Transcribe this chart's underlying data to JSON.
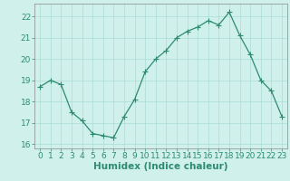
{
  "x": [
    0,
    1,
    2,
    3,
    4,
    5,
    6,
    7,
    8,
    9,
    10,
    11,
    12,
    13,
    14,
    15,
    16,
    17,
    18,
    19,
    20,
    21,
    22,
    23
  ],
  "y": [
    18.7,
    19.0,
    18.8,
    17.5,
    17.1,
    16.5,
    16.4,
    16.3,
    17.3,
    18.1,
    19.4,
    20.0,
    20.4,
    21.0,
    21.3,
    21.5,
    21.8,
    21.6,
    22.2,
    21.1,
    20.2,
    19.0,
    18.5,
    17.3
  ],
  "line_color": "#2d8b70",
  "marker": "+",
  "marker_size": 4,
  "marker_linewidth": 0.8,
  "line_width": 0.9,
  "bg_color": "#cff0eb",
  "grid_color": "#aaddd5",
  "xlabel": "Humidex (Indice chaleur)",
  "ylim": [
    15.8,
    22.6
  ],
  "xlim": [
    -0.5,
    23.5
  ],
  "yticks": [
    16,
    17,
    18,
    19,
    20,
    21,
    22
  ],
  "xticks": [
    0,
    1,
    2,
    3,
    4,
    5,
    6,
    7,
    8,
    9,
    10,
    11,
    12,
    13,
    14,
    15,
    16,
    17,
    18,
    19,
    20,
    21,
    22,
    23
  ],
  "tick_color": "#2d8b70",
  "label_color": "#2d8b70",
  "tick_fontsize": 6.5,
  "label_fontsize": 7.5,
  "spine_color": "#888888"
}
